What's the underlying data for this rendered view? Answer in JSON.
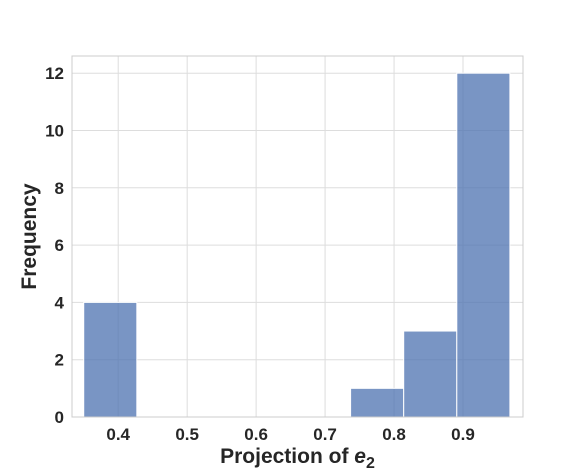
{
  "chart_data": {
    "type": "bar",
    "subtype": "histogram",
    "xlabel_prefix": "Projection of ",
    "xlabel_var": "e",
    "xlabel_sub": "2",
    "ylabel": "Frequency",
    "xlim": [
      0.333,
      0.987
    ],
    "ylim": [
      0,
      12.6
    ],
    "xticks": [
      0.4,
      0.5,
      0.6,
      0.7,
      0.8,
      0.9
    ],
    "xtick_labels": [
      "0.4",
      "0.5",
      "0.6",
      "0.7",
      "0.8",
      "0.9"
    ],
    "yticks": [
      0,
      2,
      4,
      6,
      8,
      10,
      12
    ],
    "ytick_labels": [
      "0",
      "2",
      "4",
      "6",
      "8",
      "10",
      "12"
    ],
    "grid": true,
    "legend": false,
    "bins": [
      {
        "x0": 0.35,
        "x1": 0.427,
        "count": 4
      },
      {
        "x0": 0.737,
        "x1": 0.814,
        "count": 1
      },
      {
        "x0": 0.814,
        "x1": 0.891,
        "count": 3
      },
      {
        "x0": 0.891,
        "x1": 0.968,
        "count": 12
      }
    ],
    "bar_color": "#4c72b0"
  }
}
